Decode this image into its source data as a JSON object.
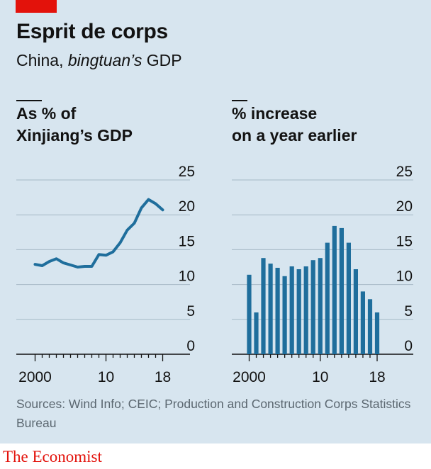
{
  "title": "Esprit de corps",
  "subtitle_prefix": "China, ",
  "subtitle_italic": "bingtuan’s",
  "subtitle_suffix": " GDP",
  "source": "Sources: Wind Info; CEIC; Production and Construction Corps Statistics Bureau",
  "logo": "The Economist",
  "colors": {
    "line": "#1f6e9c",
    "bar": "#1f6e9c",
    "background": "#d7e5ef",
    "accent": "#e3120b"
  },
  "chart_data": [
    {
      "type": "line",
      "title_lines": [
        "As % of",
        "Xinjiang’s GDP"
      ],
      "x": [
        2000,
        2001,
        2002,
        2003,
        2004,
        2005,
        2006,
        2007,
        2008,
        2009,
        2010,
        2011,
        2012,
        2013,
        2014,
        2015,
        2016,
        2017,
        2018
      ],
      "values": [
        12.9,
        12.7,
        13.3,
        13.7,
        13.1,
        12.8,
        12.5,
        12.6,
        12.6,
        14.3,
        14.2,
        14.7,
        16.0,
        17.8,
        18.8,
        21.0,
        22.2,
        21.6,
        20.7
      ],
      "ylim": [
        0,
        25
      ],
      "yticks": [
        "0",
        "5",
        "10",
        "15",
        "20",
        "25"
      ],
      "xtick_labels": [
        "2000",
        "10",
        "18"
      ],
      "grid": true
    },
    {
      "type": "bar",
      "title_lines": [
        "% increase",
        "on a year earlier"
      ],
      "x": [
        2000,
        2001,
        2002,
        2003,
        2004,
        2005,
        2006,
        2007,
        2008,
        2009,
        2010,
        2011,
        2012,
        2013,
        2014,
        2015,
        2016,
        2017,
        2018
      ],
      "values": [
        11.4,
        6.0,
        13.8,
        13.0,
        12.4,
        11.2,
        12.6,
        12.2,
        12.6,
        13.5,
        13.8,
        16.0,
        18.4,
        18.1,
        16.0,
        12.2,
        9.0,
        7.9,
        6.0
      ],
      "ylim": [
        0,
        25
      ],
      "yticks": [
        "0",
        "5",
        "10",
        "15",
        "20",
        "25"
      ],
      "xtick_labels": [
        "2000",
        "10",
        "18"
      ],
      "grid": true
    }
  ]
}
